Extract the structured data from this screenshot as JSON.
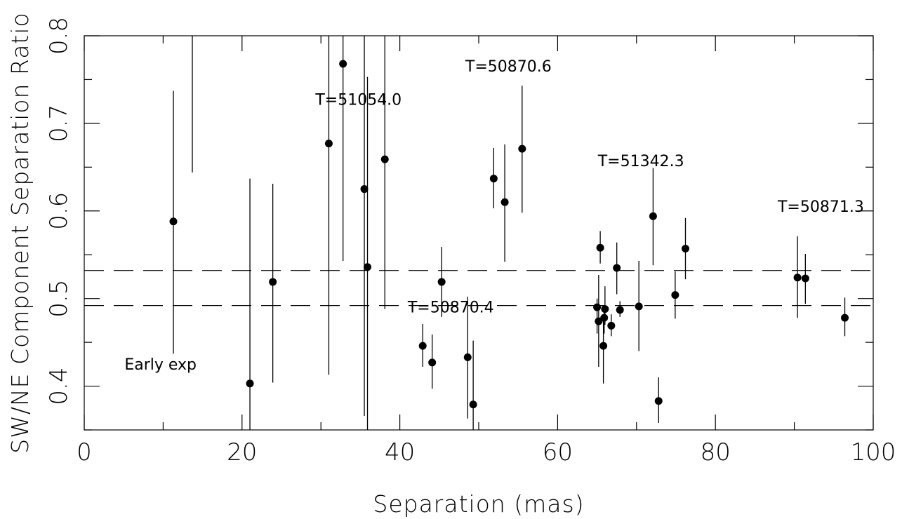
{
  "chart_data": {
    "type": "scatter",
    "title": "",
    "xlabel": "Separation (mas)",
    "ylabel": "SW/NE Component Separation Ratio",
    "xlim": [
      0,
      100
    ],
    "ylim": [
      0.35,
      0.8
    ],
    "x_ticks": [
      "0",
      "20",
      "40",
      "60",
      "80",
      "100"
    ],
    "y_ticks": [
      "0.4",
      "0.5",
      "0.6",
      "0.7",
      "0.8"
    ],
    "grid": false,
    "legend": "none",
    "reference_lines": [
      0.532,
      0.492
    ],
    "points": [
      {
        "x": 11.3,
        "y": 0.588,
        "ylow": 0.437,
        "yhigh": 0.737
      },
      {
        "x": 13.7,
        "y": null,
        "ylow": 0.644,
        "yhigh": 0.8
      },
      {
        "x": 21.0,
        "y": 0.403,
        "ylow": 0.35,
        "yhigh": 0.637
      },
      {
        "x": 23.9,
        "y": 0.519,
        "ylow": 0.404,
        "yhigh": 0.631
      },
      {
        "x": 31.0,
        "y": 0.677,
        "ylow": 0.413,
        "yhigh": 0.8
      },
      {
        "x": 32.8,
        "y": 0.768,
        "ylow": 0.543,
        "yhigh": 0.8
      },
      {
        "x": 35.5,
        "y": 0.625,
        "ylow": 0.366,
        "yhigh": 0.8
      },
      {
        "x": 35.9,
        "y": 0.536,
        "ylow": 0.35,
        "yhigh": 0.753
      },
      {
        "x": 38.1,
        "y": 0.659,
        "ylow": 0.488,
        "yhigh": 0.8
      },
      {
        "x": 42.9,
        "y": 0.446,
        "ylow": 0.422,
        "yhigh": 0.471
      },
      {
        "x": 44.1,
        "y": 0.427,
        "ylow": 0.397,
        "yhigh": 0.459
      },
      {
        "x": 45.3,
        "y": 0.519,
        "ylow": 0.479,
        "yhigh": 0.559
      },
      {
        "x": 48.6,
        "y": 0.433,
        "ylow": 0.363,
        "yhigh": 0.502
      },
      {
        "x": 49.3,
        "y": 0.379,
        "ylow": 0.35,
        "yhigh": 0.452
      },
      {
        "x": 51.9,
        "y": 0.637,
        "ylow": 0.603,
        "yhigh": 0.672
      },
      {
        "x": 53.3,
        "y": 0.61,
        "ylow": 0.542,
        "yhigh": 0.676
      },
      {
        "x": 55.5,
        "y": 0.671,
        "ylow": 0.598,
        "yhigh": 0.743
      },
      {
        "x": 65.0,
        "y": 0.49,
        "ylow": 0.46,
        "yhigh": 0.5
      },
      {
        "x": 65.2,
        "y": 0.474,
        "ylow": 0.422,
        "yhigh": 0.527
      },
      {
        "x": 65.4,
        "y": 0.558,
        "ylow": 0.54,
        "yhigh": 0.577
      },
      {
        "x": 65.8,
        "y": 0.446,
        "ylow": 0.403,
        "yhigh": 0.48
      },
      {
        "x": 65.9,
        "y": 0.478,
        "ylow": 0.46,
        "yhigh": 0.49
      },
      {
        "x": 66.0,
        "y": 0.488,
        "ylow": 0.47,
        "yhigh": 0.514
      },
      {
        "x": 66.8,
        "y": 0.469,
        "ylow": 0.457,
        "yhigh": 0.482
      },
      {
        "x": 67.5,
        "y": 0.535,
        "ylow": 0.505,
        "yhigh": 0.564
      },
      {
        "x": 67.9,
        "y": 0.487,
        "ylow": 0.479,
        "yhigh": 0.497
      },
      {
        "x": 70.3,
        "y": 0.491,
        "ylow": 0.44,
        "yhigh": 0.543
      },
      {
        "x": 72.1,
        "y": 0.594,
        "ylow": 0.538,
        "yhigh": 0.649
      },
      {
        "x": 72.8,
        "y": 0.383,
        "ylow": 0.358,
        "yhigh": 0.41
      },
      {
        "x": 74.9,
        "y": 0.504,
        "ylow": 0.477,
        "yhigh": 0.531
      },
      {
        "x": 76.2,
        "y": 0.557,
        "ylow": 0.522,
        "yhigh": 0.592
      },
      {
        "x": 90.4,
        "y": 0.524,
        "ylow": 0.478,
        "yhigh": 0.571
      },
      {
        "x": 91.4,
        "y": 0.523,
        "ylow": 0.494,
        "yhigh": 0.551
      },
      {
        "x": 96.4,
        "y": 0.478,
        "ylow": 0.457,
        "yhigh": 0.501
      }
    ],
    "annotations": [
      {
        "text": "T=51054.0",
        "x": 29.3,
        "y": 0.721
      },
      {
        "text": "T=50870.6",
        "x": 48.3,
        "y": 0.759
      },
      {
        "text": "T=51342.3",
        "x": 65.1,
        "y": 0.651
      },
      {
        "text": "T=50871.3",
        "x": 87.9,
        "y": 0.599
      },
      {
        "text": "T=50870.4",
        "x": 41.0,
        "y": 0.484
      },
      {
        "text": "Early exp",
        "x": 5.1,
        "y": 0.419
      }
    ]
  }
}
